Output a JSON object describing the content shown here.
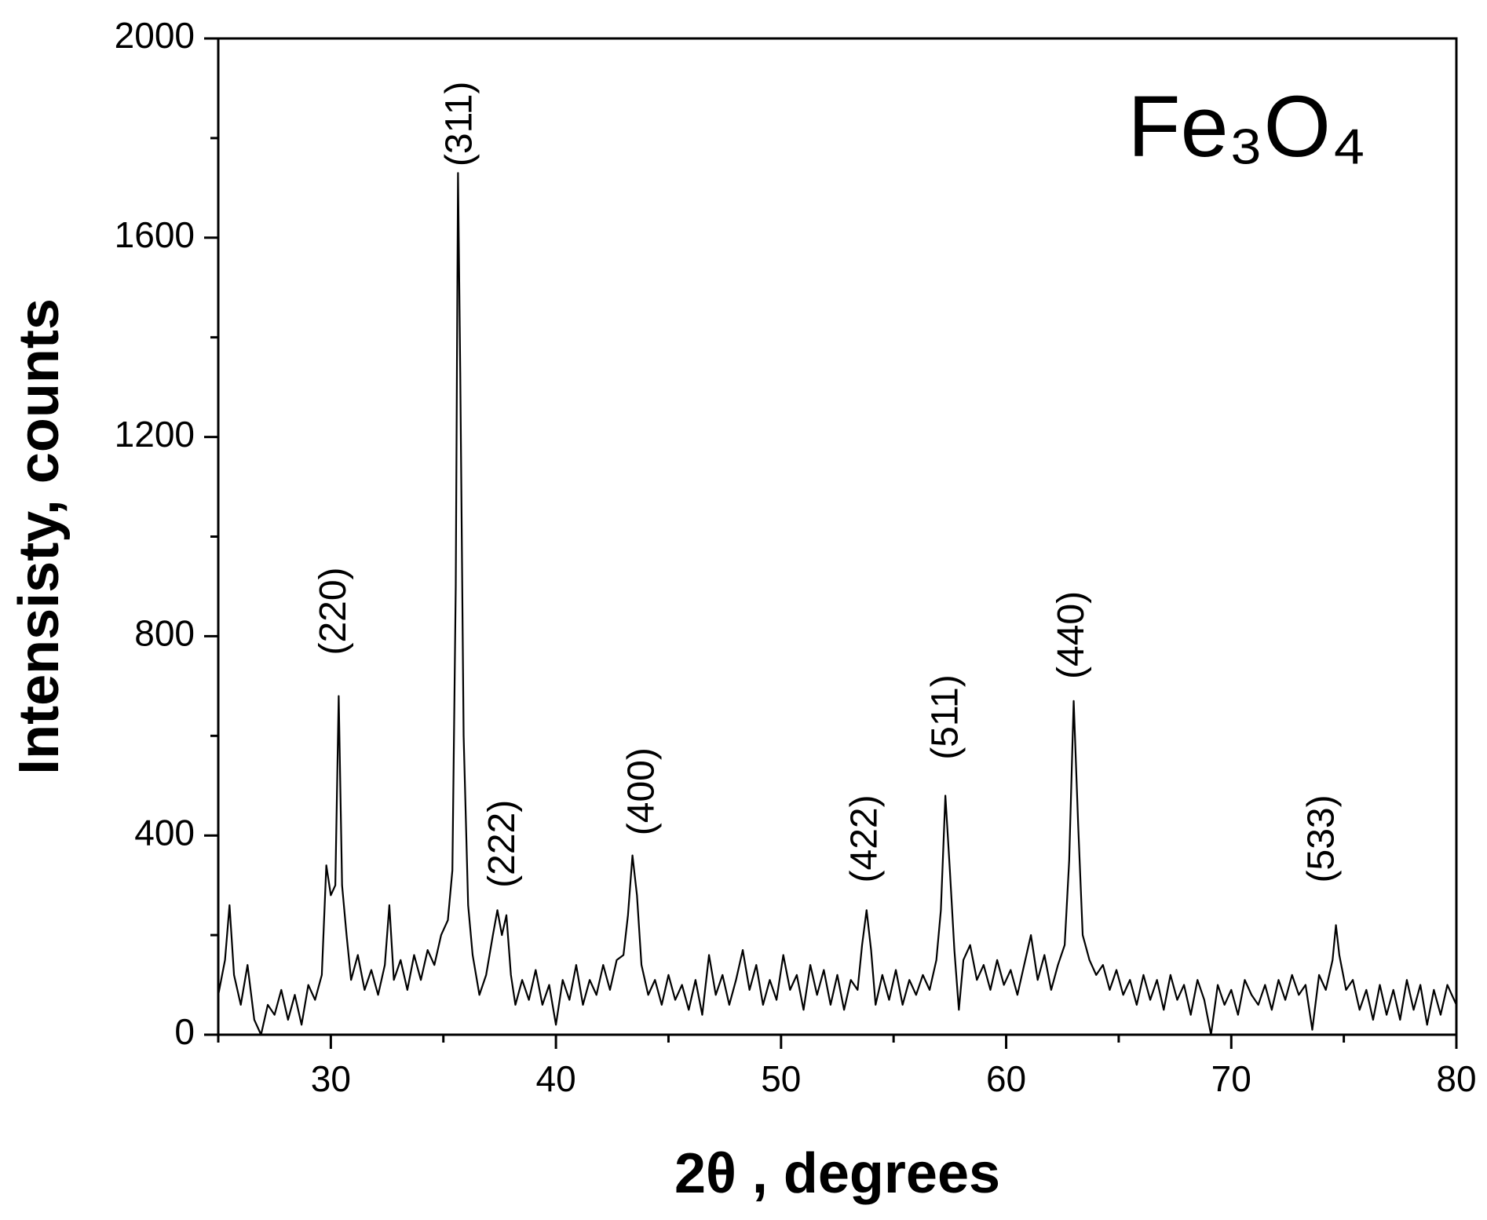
{
  "chart_data": {
    "type": "line",
    "xlabel": "2θ , degrees",
    "ylabel": "Intensisty, counts",
    "label": "Fe₃O₄",
    "color": "#000000",
    "xlim": [
      25,
      80
    ],
    "ylim": [
      0,
      2000
    ],
    "xticks": [
      30,
      40,
      50,
      60,
      70,
      80
    ],
    "xminorticks": [
      25,
      35,
      45,
      55,
      65,
      75
    ],
    "yticks": [
      0,
      400,
      800,
      1200,
      1600,
      2000
    ],
    "yminorticks": [
      200,
      600,
      1000,
      1400,
      1800
    ],
    "annotations": [
      {
        "text": "(220)",
        "x": 30.2,
        "y": 762
      },
      {
        "text": "(311)",
        "x": 35.8,
        "y": 1743
      },
      {
        "text": "(222)",
        "x": 37.7,
        "y": 295
      },
      {
        "text": "(400)",
        "x": 43.9,
        "y": 400
      },
      {
        "text": "(422)",
        "x": 53.8,
        "y": 305
      },
      {
        "text": "(511)",
        "x": 57.4,
        "y": 552
      },
      {
        "text": "(440)",
        "x": 63.0,
        "y": 714
      },
      {
        "text": "(533)",
        "x": 74.1,
        "y": 305
      }
    ],
    "x": [
      25.0,
      25.3,
      25.5,
      25.7,
      26.0,
      26.3,
      26.6,
      26.9,
      27.2,
      27.5,
      27.8,
      28.1,
      28.4,
      28.7,
      29.0,
      29.3,
      29.6,
      29.8,
      30.0,
      30.2,
      30.35,
      30.5,
      30.7,
      30.9,
      31.2,
      31.5,
      31.8,
      32.1,
      32.4,
      32.6,
      32.8,
      33.1,
      33.4,
      33.7,
      34.0,
      34.3,
      34.6,
      34.9,
      35.2,
      35.4,
      35.55,
      35.65,
      35.75,
      35.9,
      36.1,
      36.3,
      36.6,
      36.9,
      37.2,
      37.4,
      37.6,
      37.8,
      38.0,
      38.2,
      38.5,
      38.8,
      39.1,
      39.4,
      39.7,
      40.0,
      40.3,
      40.6,
      40.9,
      41.2,
      41.5,
      41.8,
      42.1,
      42.4,
      42.7,
      43.0,
      43.2,
      43.4,
      43.6,
      43.8,
      44.1,
      44.4,
      44.7,
      45.0,
      45.3,
      45.6,
      45.9,
      46.2,
      46.5,
      46.8,
      47.1,
      47.4,
      47.7,
      48.0,
      48.3,
      48.6,
      48.9,
      49.2,
      49.5,
      49.8,
      50.1,
      50.4,
      50.7,
      51.0,
      51.3,
      51.6,
      51.9,
      52.2,
      52.5,
      52.8,
      53.1,
      53.4,
      53.6,
      53.8,
      54.0,
      54.2,
      54.5,
      54.8,
      55.1,
      55.4,
      55.7,
      56.0,
      56.3,
      56.6,
      56.9,
      57.1,
      57.3,
      57.5,
      57.7,
      57.9,
      58.1,
      58.4,
      58.7,
      59.0,
      59.3,
      59.6,
      59.9,
      60.2,
      60.5,
      60.8,
      61.1,
      61.4,
      61.7,
      62.0,
      62.3,
      62.6,
      62.8,
      63.0,
      63.2,
      63.4,
      63.7,
      64.0,
      64.3,
      64.6,
      64.9,
      65.2,
      65.5,
      65.8,
      66.1,
      66.4,
      66.7,
      67.0,
      67.3,
      67.6,
      67.9,
      68.2,
      68.5,
      68.8,
      69.1,
      69.4,
      69.7,
      70.0,
      70.3,
      70.6,
      70.9,
      71.2,
      71.5,
      71.8,
      72.1,
      72.4,
      72.7,
      73.0,
      73.3,
      73.6,
      73.9,
      74.2,
      74.5,
      74.65,
      74.8,
      75.1,
      75.4,
      75.7,
      76.0,
      76.3,
      76.6,
      76.9,
      77.2,
      77.5,
      77.8,
      78.1,
      78.4,
      78.7,
      79.0,
      79.3,
      79.6,
      80.0
    ],
    "values": [
      80,
      150,
      260,
      120,
      60,
      140,
      30,
      0,
      60,
      40,
      90,
      30,
      80,
      20,
      100,
      70,
      120,
      340,
      280,
      300,
      680,
      300,
      200,
      110,
      160,
      90,
      130,
      80,
      140,
      260,
      110,
      150,
      90,
      160,
      110,
      170,
      140,
      200,
      230,
      330,
      900,
      1730,
      1330,
      600,
      260,
      160,
      80,
      120,
      200,
      250,
      200,
      240,
      120,
      60,
      110,
      70,
      130,
      60,
      100,
      20,
      110,
      70,
      140,
      60,
      110,
      80,
      140,
      90,
      150,
      160,
      240,
      360,
      280,
      140,
      80,
      110,
      60,
      120,
      70,
      100,
      50,
      110,
      40,
      160,
      80,
      120,
      60,
      110,
      170,
      90,
      140,
      60,
      110,
      70,
      160,
      90,
      120,
      50,
      140,
      80,
      130,
      60,
      120,
      50,
      110,
      90,
      180,
      250,
      170,
      60,
      120,
      70,
      130,
      60,
      110,
      80,
      120,
      90,
      150,
      250,
      480,
      330,
      170,
      50,
      150,
      180,
      110,
      140,
      90,
      150,
      100,
      130,
      80,
      140,
      200,
      110,
      160,
      90,
      140,
      180,
      350,
      670,
      420,
      200,
      150,
      120,
      140,
      90,
      130,
      80,
      110,
      60,
      120,
      70,
      110,
      50,
      120,
      70,
      100,
      40,
      110,
      70,
      0,
      100,
      60,
      90,
      40,
      110,
      80,
      60,
      100,
      50,
      110,
      70,
      120,
      80,
      100,
      10,
      120,
      90,
      150,
      220,
      160,
      90,
      110,
      50,
      90,
      30,
      100,
      40,
      90,
      30,
      110,
      50,
      100,
      20,
      90,
      40,
      100,
      60
    ]
  }
}
